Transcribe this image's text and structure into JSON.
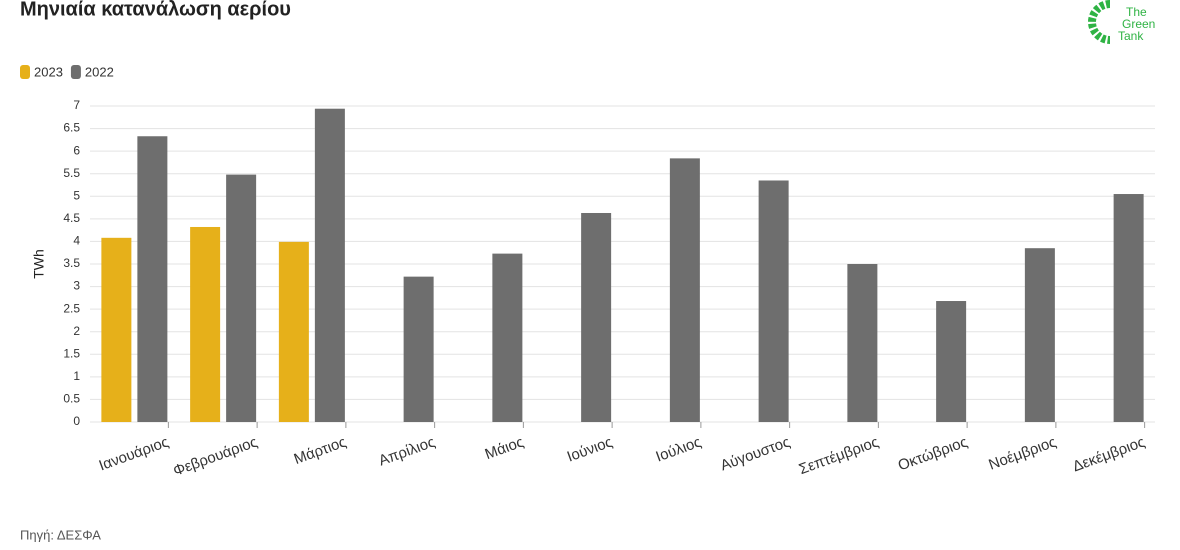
{
  "chart_data": {
    "type": "bar",
    "title": "Μηνιαία κατανάλωση αερίου",
    "y_label": "TWh",
    "categories": [
      "Ιανουάριος",
      "Φεβρουάριος",
      "Μάρτιος",
      "Απρίλιος",
      "Μάιος",
      "Ιούνιος",
      "Ιούλιος",
      "Αύγουστος",
      "Σεπτέμβριος",
      "Οκτώβριος",
      "Νοέμβριος",
      "Δεκέμβριος"
    ],
    "series": [
      {
        "name": "2023",
        "color": "#e6b01a",
        "values": [
          4.08,
          4.32,
          3.99,
          null,
          null,
          null,
          null,
          null,
          null,
          null,
          null,
          null
        ]
      },
      {
        "name": "2022",
        "color": "#6e6e6e",
        "values": [
          6.33,
          5.48,
          6.94,
          3.22,
          3.73,
          4.63,
          5.84,
          5.35,
          3.5,
          2.68,
          3.85,
          5.05
        ]
      }
    ],
    "ylim": [
      0,
      7
    ],
    "yticks": [
      0,
      0.5,
      1,
      1.5,
      2,
      2.5,
      3,
      3.5,
      4,
      4.5,
      5,
      5.5,
      6,
      6.5,
      7
    ],
    "grid": true,
    "source": "Πηγή: ΔΕΣΦΑ"
  },
  "logo": [
    "The",
    "Green",
    "Tank"
  ]
}
